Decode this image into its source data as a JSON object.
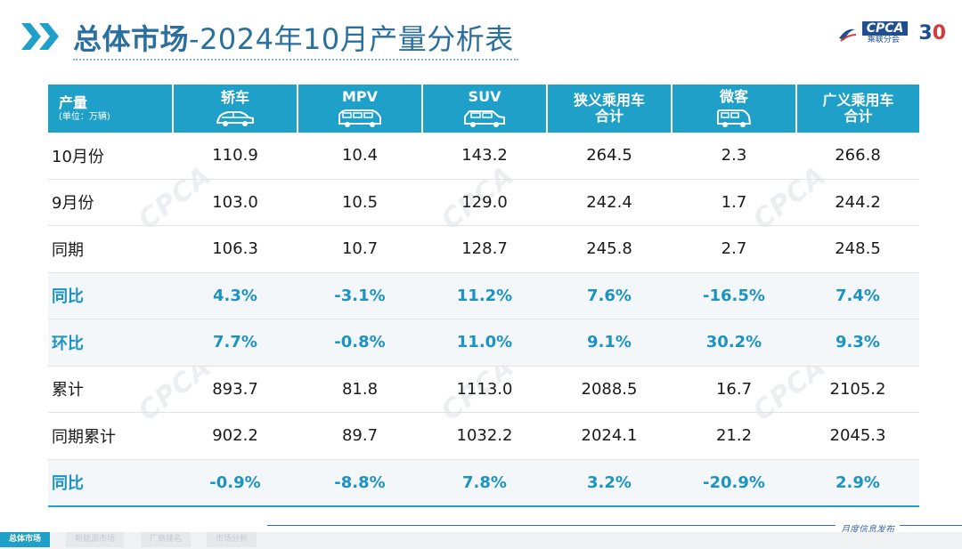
{
  "header": {
    "title_bold": "总体市场",
    "title_rest": "-2024年10月产量分析表"
  },
  "logo": {
    "cpca": "CPCA",
    "cpca_sub": "乘联分会",
    "anniv_main": "3",
    "anniv_zero": "0"
  },
  "table": {
    "corner_label": "产量",
    "corner_unit": "(单位：万辆)",
    "columns": [
      {
        "label": "轿车",
        "icon": "sedan-icon"
      },
      {
        "label": "MPV",
        "icon": "mpv-icon"
      },
      {
        "label": "SUV",
        "icon": "suv-icon"
      },
      {
        "label": "狭义乘用车合计",
        "line1": "狭义乘用车",
        "line2": "合计"
      },
      {
        "label": "微客",
        "icon": "minivan-icon"
      },
      {
        "label": "广义乘用车合计",
        "line1": "广义乘用车",
        "line2": "合计"
      }
    ],
    "rows": [
      {
        "label": "10月份",
        "values": [
          "110.9",
          "10.4",
          "143.2",
          "264.5",
          "2.3",
          "266.8"
        ]
      },
      {
        "label": "9月份",
        "values": [
          "103.0",
          "10.5",
          "129.0",
          "242.4",
          "1.7",
          "244.2"
        ]
      },
      {
        "label": "同期",
        "values": [
          "106.3",
          "10.7",
          "128.7",
          "245.8",
          "2.7",
          "248.5"
        ]
      },
      {
        "label": "同比",
        "values": [
          "4.3%",
          "-3.1%",
          "11.2%",
          "7.6%",
          "-16.5%",
          "7.4%"
        ]
      },
      {
        "label": "环比",
        "values": [
          "7.7%",
          "-0.8%",
          "11.0%",
          "9.1%",
          "30.2%",
          "9.3%"
        ]
      },
      {
        "label": "累计",
        "values": [
          "893.7",
          "81.8",
          "1113.0",
          "2088.5",
          "16.7",
          "2105.2"
        ]
      },
      {
        "label": "同期累计",
        "values": [
          "902.2",
          "89.7",
          "1032.2",
          "2024.1",
          "21.2",
          "2045.3"
        ]
      },
      {
        "label": "同比",
        "values": [
          "-0.9%",
          "-8.8%",
          "7.8%",
          "3.2%",
          "-20.9%",
          "2.9%"
        ]
      }
    ]
  },
  "footer": {
    "tabs": [
      "总体市场",
      "新能源市场",
      "厂商排名",
      "市场分析"
    ],
    "right_text": "月度信息发布"
  },
  "colors": {
    "accent": "#1fa0c8",
    "title": "#2a6f9e",
    "pct": "#1c93c4"
  }
}
